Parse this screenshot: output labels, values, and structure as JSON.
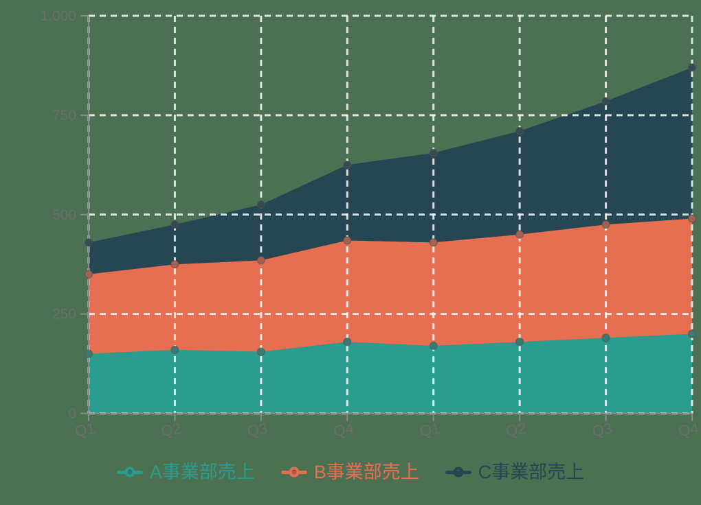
{
  "background_color": "#4c7052",
  "axis": {
    "line_color": "#8a8a8a",
    "tick_label_color": "#6e6e6e",
    "grid_color": "rgba(255,255,255,0.82)",
    "point_overlay_color": "rgba(80,80,80,0.45)"
  },
  "chart_data": {
    "type": "area",
    "stacked": true,
    "title": "",
    "xlabel": "",
    "ylabel": "",
    "categories": [
      "Q1",
      "Q2",
      "Q3",
      "Q4",
      "Q1",
      "Q2",
      "Q3",
      "Q4"
    ],
    "series": [
      {
        "name": "A事業部売上",
        "color": "#2a9d8f",
        "values": [
          150,
          160,
          155,
          180,
          170,
          180,
          190,
          200
        ]
      },
      {
        "name": "B事業部売上",
        "color": "#e76f51",
        "values": [
          200,
          215,
          230,
          255,
          260,
          270,
          285,
          290
        ]
      },
      {
        "name": "C事業部売上",
        "color": "#264653",
        "values": [
          80,
          100,
          140,
          190,
          225,
          260,
          310,
          380
        ]
      }
    ],
    "stacked_totals": [
      430,
      475,
      525,
      625,
      655,
      710,
      785,
      870
    ],
    "ylim": [
      0,
      1000
    ],
    "yticks": [
      0,
      250,
      500,
      750,
      1000
    ],
    "ytick_labels": [
      "0",
      "250",
      "500",
      "750",
      "1,000"
    ],
    "grid": "dashed",
    "legend_position": "bottom"
  }
}
